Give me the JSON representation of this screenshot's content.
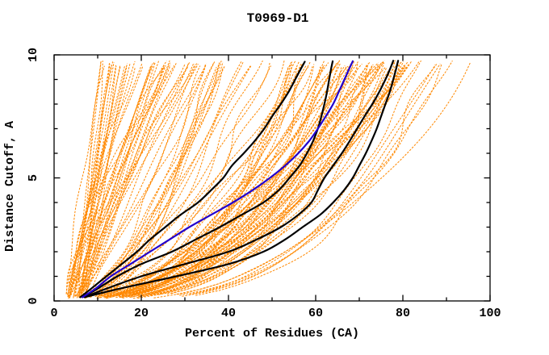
{
  "page": {
    "background": "#ffffff"
  },
  "chart_data": {
    "type": "line",
    "title": "T0969-D1",
    "xlabel": "Percent of Residues (CA)",
    "ylabel": "Distance Cutoff, A",
    "xlim": [
      0,
      100
    ],
    "ylim": [
      0,
      10
    ],
    "grid": false,
    "legend": "none",
    "axis_color": "#000000",
    "x_major_ticks": [
      0,
      20,
      40,
      60,
      80,
      100
    ],
    "x_minor_ticks": [
      10,
      30,
      50,
      70,
      90
    ],
    "y_major_ticks": [
      0,
      5,
      10
    ],
    "y_minor_ticks": [
      1,
      2,
      3,
      4,
      6,
      7,
      8,
      9
    ],
    "series": [
      {
        "name": "black-curve-1",
        "color": "#000000",
        "width": 2.2,
        "dash": "none",
        "points_distance_percent": [
          [
            0.15,
            6
          ],
          [
            0.5,
            8.5
          ],
          [
            1,
            12
          ],
          [
            1.5,
            15.5
          ],
          [
            2,
            19
          ],
          [
            2.5,
            22
          ],
          [
            3,
            25.5
          ],
          [
            3.5,
            29
          ],
          [
            4,
            33
          ],
          [
            4.5,
            36
          ],
          [
            5,
            38.8
          ],
          [
            5.5,
            40.8
          ],
          [
            6,
            43.5
          ],
          [
            6.5,
            46
          ],
          [
            7,
            48.2
          ],
          [
            7.5,
            50
          ],
          [
            8,
            52
          ],
          [
            8.5,
            53.8
          ],
          [
            9,
            55.3
          ],
          [
            9.4,
            56.5
          ],
          [
            9.72,
            57.5
          ]
        ]
      },
      {
        "name": "black-curve-2",
        "color": "#000000",
        "width": 2.2,
        "dash": "none",
        "points_distance_percent": [
          [
            0.15,
            6.5
          ],
          [
            0.5,
            10
          ],
          [
            1,
            14.5
          ],
          [
            1.5,
            20
          ],
          [
            2,
            27
          ],
          [
            2.5,
            32.5
          ],
          [
            3,
            38
          ],
          [
            3.5,
            43
          ],
          [
            4,
            48
          ],
          [
            4.5,
            51.5
          ],
          [
            5,
            54
          ],
          [
            5.5,
            56.3
          ],
          [
            6,
            58
          ],
          [
            6.5,
            59.4
          ],
          [
            7,
            60.5
          ],
          [
            7.5,
            61.3
          ],
          [
            8,
            62
          ],
          [
            8.5,
            62.6
          ],
          [
            9,
            63.1
          ],
          [
            9.4,
            63.5
          ],
          [
            9.74,
            63.9
          ]
        ]
      },
      {
        "name": "black-curve-3",
        "color": "#000000",
        "width": 2.2,
        "dash": "none",
        "points_distance_percent": [
          [
            0.15,
            7
          ],
          [
            0.5,
            12
          ],
          [
            1,
            20
          ],
          [
            1.5,
            30
          ],
          [
            2,
            40
          ],
          [
            2.5,
            46.5
          ],
          [
            3,
            52
          ],
          [
            3.5,
            56
          ],
          [
            4,
            59
          ],
          [
            4.5,
            60.5
          ],
          [
            5,
            62
          ],
          [
            5.5,
            64
          ],
          [
            6,
            66
          ],
          [
            6.5,
            67.8
          ],
          [
            7,
            69.5
          ],
          [
            7.5,
            71.2
          ],
          [
            8,
            73
          ],
          [
            8.5,
            74.6
          ],
          [
            9,
            76
          ],
          [
            9.4,
            77
          ],
          [
            9.76,
            77.8
          ]
        ]
      },
      {
        "name": "black-curve-4",
        "color": "#000000",
        "width": 2.2,
        "dash": "none",
        "points_distance_percent": [
          [
            0.15,
            7
          ],
          [
            0.5,
            15
          ],
          [
            1,
            28
          ],
          [
            1.5,
            40
          ],
          [
            2,
            48
          ],
          [
            2.5,
            53
          ],
          [
            3,
            57
          ],
          [
            3.5,
            61
          ],
          [
            4,
            64
          ],
          [
            4.5,
            66.5
          ],
          [
            5,
            68.5
          ],
          [
            5.5,
            70
          ],
          [
            6,
            71.5
          ],
          [
            6.5,
            72.8
          ],
          [
            7,
            74
          ],
          [
            7.5,
            75
          ],
          [
            8,
            76
          ],
          [
            8.5,
            77
          ],
          [
            9,
            77.8
          ],
          [
            9.4,
            78.4
          ],
          [
            9.76,
            78.9
          ]
        ]
      },
      {
        "name": "blue-curve",
        "color": "#2200cc",
        "width": 2.2,
        "dash": "none",
        "points_distance_percent": [
          [
            0.15,
            6.5
          ],
          [
            0.5,
            9.5
          ],
          [
            1,
            13
          ],
          [
            1.5,
            17.5
          ],
          [
            2,
            22
          ],
          [
            2.5,
            26.5
          ],
          [
            3,
            31
          ],
          [
            3.5,
            36
          ],
          [
            4,
            41
          ],
          [
            4.5,
            45.5
          ],
          [
            5,
            49.5
          ],
          [
            5.5,
            53
          ],
          [
            6,
            56
          ],
          [
            6.5,
            58.5
          ],
          [
            7,
            60.5
          ],
          [
            7.5,
            62.3
          ],
          [
            8,
            64
          ],
          [
            8.5,
            65.3
          ],
          [
            9,
            66.6
          ],
          [
            9.4,
            67.6
          ],
          [
            9.74,
            68.5
          ]
        ]
      }
    ],
    "ensemble": {
      "name": "orange-model-curves",
      "color": "#ff8800",
      "count": 140,
      "width": 1,
      "dash": "2.6 1.6",
      "seed": 20190613,
      "start_percent_range": [
        2.5,
        7.5
      ],
      "start_distance_range": [
        0.1,
        0.3
      ],
      "top_distance_range": [
        9.5,
        9.78
      ],
      "top_percent_range": [
        11,
        96
      ]
    }
  }
}
